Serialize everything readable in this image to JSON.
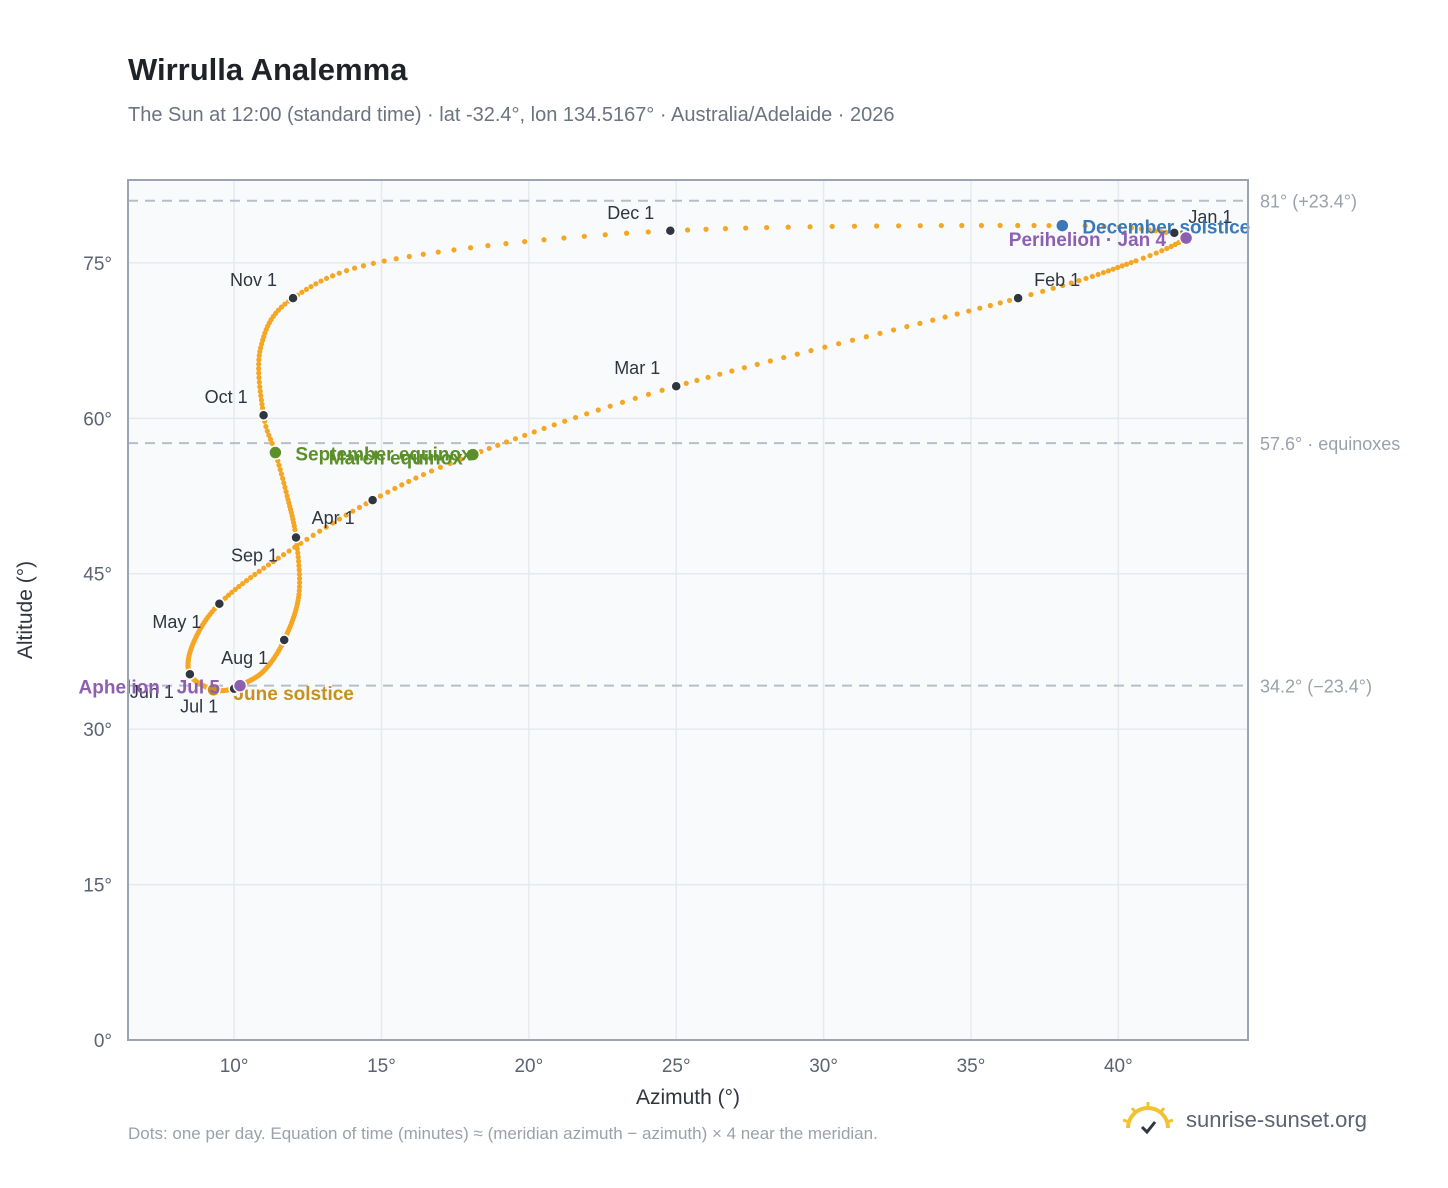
{
  "title": "Wirrulla Analemma",
  "subtitle": "The Sun at 12:00 (standard time) · lat -32.4°, lon 134.5167° · Australia/Adelaide · 2026",
  "footnote": "Dots: one per day. Equation of time (minutes) ≈ (meridian azimuth − azimuth) × 4 near the meridian.",
  "brand": {
    "name": "sunrise-sunset.org",
    "icon": "sun-logo-icon"
  },
  "colors": {
    "path": "#f5a623",
    "month": "#2f3640",
    "equinox": "#5a8f29",
    "june_solstice": "#c8911e",
    "december_solstice": "#3a78b8",
    "apsis": "#8e5fb0",
    "refline": "#b8bec8",
    "grid": "#e6eaef",
    "plot_bg": "#f8fafc",
    "frame": "#9aa4b2"
  },
  "chart_data": {
    "type": "scatter",
    "title": "Wirrulla Analemma",
    "xlabel": "Azimuth (°)",
    "ylabel": "Altitude (°)",
    "xlim": [
      6.4,
      44.4
    ],
    "ylim": [
      0,
      83
    ],
    "x_ticks": [
      10,
      15,
      20,
      25,
      30,
      35,
      40
    ],
    "x_tick_labels": [
      "10°",
      "15°",
      "20°",
      "25°",
      "30°",
      "35°",
      "40°"
    ],
    "y_ticks": [
      0,
      15,
      30,
      45,
      60,
      75
    ],
    "y_tick_labels": [
      "0°",
      "15°",
      "30°",
      "45°",
      "60°",
      "75°"
    ],
    "grid": true,
    "reference_lines": [
      {
        "y": 81.0,
        "label": "81° (+23.4°)"
      },
      {
        "y": 57.6,
        "label": "57.6° · equinoxes"
      },
      {
        "y": 34.2,
        "label": "34.2° (−23.4°)"
      }
    ],
    "path_anchors": [
      {
        "doy": 1,
        "az": 41.9,
        "alt": 77.9
      },
      {
        "doy": 4,
        "az": 42.3,
        "alt": 77.4
      },
      {
        "doy": 15,
        "az": 40.6,
        "alt": 75.2
      },
      {
        "doy": 32,
        "az": 36.6,
        "alt": 71.6
      },
      {
        "doy": 60,
        "az": 25.0,
        "alt": 63.1
      },
      {
        "doy": 79,
        "az": 18.1,
        "alt": 56.5
      },
      {
        "doy": 91,
        "az": 14.7,
        "alt": 52.1
      },
      {
        "doy": 106,
        "az": 11.5,
        "alt": 46.5
      },
      {
        "doy": 121,
        "az": 9.5,
        "alt": 42.1
      },
      {
        "doy": 137,
        "az": 8.6,
        "alt": 38.2
      },
      {
        "doy": 152,
        "az": 8.5,
        "alt": 35.3
      },
      {
        "doy": 172,
        "az": 9.3,
        "alt": 33.8
      },
      {
        "doy": 182,
        "az": 10.0,
        "alt": 33.9
      },
      {
        "doy": 186,
        "az": 10.2,
        "alt": 34.2
      },
      {
        "doy": 200,
        "az": 11.0,
        "alt": 35.6
      },
      {
        "doy": 213,
        "az": 11.7,
        "alt": 38.6
      },
      {
        "doy": 230,
        "az": 12.2,
        "alt": 43.0
      },
      {
        "doy": 244,
        "az": 12.1,
        "alt": 48.5
      },
      {
        "doy": 256,
        "az": 11.8,
        "alt": 52.5
      },
      {
        "doy": 266,
        "az": 11.4,
        "alt": 56.7
      },
      {
        "doy": 274,
        "az": 11.0,
        "alt": 60.3
      },
      {
        "doy": 290,
        "az": 10.9,
        "alt": 66.8
      },
      {
        "doy": 305,
        "az": 12.0,
        "alt": 71.6
      },
      {
        "doy": 320,
        "az": 15.5,
        "alt": 75.4
      },
      {
        "doy": 335,
        "az": 24.8,
        "alt": 78.1
      },
      {
        "doy": 355,
        "az": 38.1,
        "alt": 78.6
      },
      {
        "doy": 365,
        "az": 41.8,
        "alt": 77.9
      }
    ],
    "month_markers": [
      {
        "label": "Jan 1",
        "az": 41.9,
        "alt": 77.9,
        "anchor": "start",
        "dx": 14,
        "dy": -10
      },
      {
        "label": "Feb 1",
        "az": 36.6,
        "alt": 71.6,
        "anchor": "start",
        "dx": 16,
        "dy": -12
      },
      {
        "label": "Mar 1",
        "az": 25.0,
        "alt": 63.1,
        "anchor": "end",
        "dx": -16,
        "dy": -12
      },
      {
        "label": "Apr 1",
        "az": 14.7,
        "alt": 52.1,
        "anchor": "end",
        "dx": -18,
        "dy": 24
      },
      {
        "label": "May 1",
        "az": 9.5,
        "alt": 42.1,
        "anchor": "end",
        "dx": -18,
        "dy": 24
      },
      {
        "label": "Jun 1",
        "az": 8.5,
        "alt": 35.3,
        "anchor": "end",
        "dx": -16,
        "dy": 24
      },
      {
        "label": "Jul 1",
        "az": 10.0,
        "alt": 33.9,
        "anchor": "end",
        "dx": -16,
        "dy": 24
      },
      {
        "label": "Aug 1",
        "az": 11.7,
        "alt": 38.6,
        "anchor": "end",
        "dx": -16,
        "dy": 24
      },
      {
        "label": "Sep 1",
        "az": 12.1,
        "alt": 48.5,
        "anchor": "end",
        "dx": -18,
        "dy": 24
      },
      {
        "label": "Oct 1",
        "az": 11.0,
        "alt": 60.3,
        "anchor": "end",
        "dx": -16,
        "dy": -12
      },
      {
        "label": "Nov 1",
        "az": 12.0,
        "alt": 71.6,
        "anchor": "end",
        "dx": -16,
        "dy": -12
      },
      {
        "label": "Dec 1",
        "az": 24.8,
        "alt": 78.1,
        "anchor": "end",
        "dx": -16,
        "dy": -12
      }
    ],
    "events": [
      {
        "label": "March equinox",
        "az": 18.1,
        "alt": 56.5,
        "color": "equinox",
        "anchor": "end",
        "dx": -10,
        "dy": 10
      },
      {
        "label": "September equinox",
        "az": 11.4,
        "alt": 56.7,
        "color": "equinox",
        "anchor": "start",
        "dx": 20,
        "dy": 8
      },
      {
        "label": "June solstice",
        "az": 9.3,
        "alt": 33.8,
        "color": "june_solstice",
        "anchor": "start",
        "dx": 20,
        "dy": 10
      },
      {
        "label": "December solstice",
        "az": 38.1,
        "alt": 78.6,
        "color": "december_solstice",
        "anchor": "start",
        "dx": 20,
        "dy": 8
      },
      {
        "label": "Perihelion · Jan 4",
        "az": 42.3,
        "alt": 77.4,
        "color": "apsis",
        "anchor": "end",
        "dx": -20,
        "dy": 8
      },
      {
        "label": "Aphelion · Jul 5",
        "az": 10.2,
        "alt": 34.2,
        "color": "apsis",
        "anchor": "end",
        "dx": -20,
        "dy": 8
      }
    ]
  }
}
